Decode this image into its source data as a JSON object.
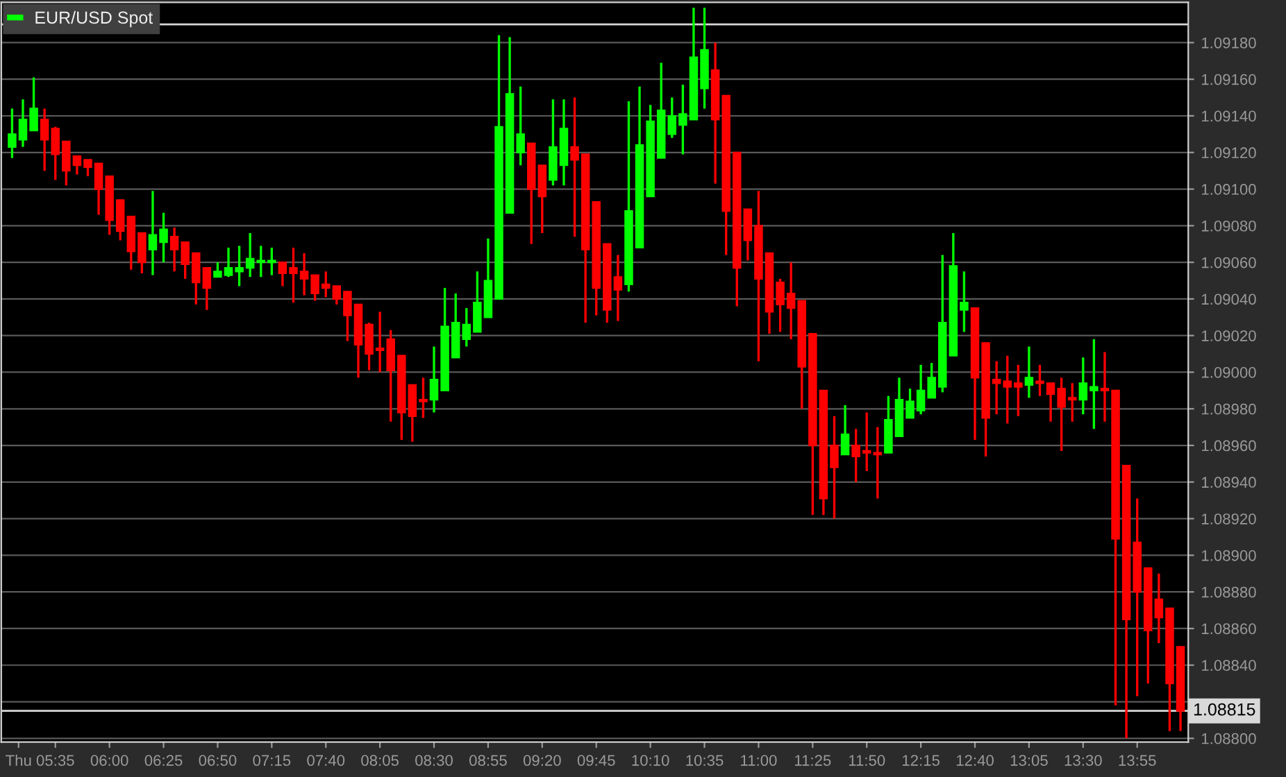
{
  "chart_data": {
    "type": "candlestick",
    "series": [
      {
        "name": "EUR/USD Spot",
        "colors": [
          "#00ff00",
          "#00ff00",
          "#00ff00",
          "#ff0000",
          "#ff0000",
          "#ff0000",
          "#ff0000",
          "#ff0000",
          "#ff0000",
          "#ff0000",
          "#ff0000",
          "#ff0000",
          "#ff0000",
          "#00ff00",
          "#00ff00",
          "#ff0000",
          "#ff0000",
          "#ff0000",
          "#ff0000",
          "#00ff00",
          "#00ff00",
          "#00ff00",
          "#00ff00",
          "#00ff00",
          "#00ff00",
          "#ff0000",
          "#ff0000",
          "#ff0000",
          "#ff0000",
          "#ff0000",
          "#ff0000",
          "#ff0000",
          "#ff0000",
          "#ff0000",
          "#ff0000",
          "#ff0000",
          "#ff0000",
          "#ff0000",
          "#ff0000",
          "#00ff00",
          "#00ff00",
          "#00ff00",
          "#00ff00",
          "#00ff00",
          "#00ff00",
          "#00ff00",
          "#00ff00",
          "#00ff00",
          "#ff0000",
          "#ff0000",
          "#00ff00",
          "#00ff00",
          "#ff0000",
          "#ff0000",
          "#ff0000",
          "#ff0000",
          "#ff0000",
          "#00ff00",
          "#00ff00",
          "#00ff00",
          "#00ff00",
          "#00ff00",
          "#00ff00",
          "#00ff00",
          "#00ff00",
          "#ff0000",
          "#ff0000",
          "#ff0000",
          "#ff0000",
          "#ff0000",
          "#ff0000",
          "#ff0000",
          "#ff0000",
          "#ff0000",
          "#ff0000",
          "#ff0000",
          "#ff0000",
          "#00ff00",
          "#ff0000",
          "#ff0000",
          "#ff0000",
          "#00ff00",
          "#00ff00",
          "#00ff00",
          "#00ff00",
          "#00ff00",
          "#00ff00",
          "#00ff00",
          "#00ff00",
          "#ff0000",
          "#ff0000",
          "#ff0000",
          "#ff0000",
          "#ff0000",
          "#00ff00",
          "#ff0000",
          "#ff0000",
          "#ff0000",
          "#ff0000",
          "#00ff00",
          "#00ff00",
          "#ff0000",
          "#ff0000",
          "#ff0000",
          "#ff0000",
          "#ff0000",
          "#ff0000",
          "#ff0000",
          "#ff0000"
        ],
        "x": [
          5.25,
          5.3333,
          5.4167,
          5.5,
          5.5833,
          5.6667,
          5.75,
          5.8333,
          5.9167,
          6,
          6.0833,
          6.1667,
          6.25,
          6.3333,
          6.4167,
          6.5,
          6.5833,
          6.6667,
          6.75,
          6.8333,
          6.9167,
          7,
          7.0833,
          7.1667,
          7.25,
          7.3333,
          7.4167,
          7.5,
          7.5833,
          7.6667,
          7.75,
          7.8333,
          7.9167,
          8,
          8.0833,
          8.1667,
          8.25,
          8.3333,
          8.4167,
          8.5,
          8.5833,
          8.6667,
          8.75,
          8.8333,
          8.9167,
          9,
          9.0833,
          9.1667,
          9.25,
          9.3333,
          9.4167,
          9.5,
          9.5833,
          9.6667,
          9.75,
          9.8333,
          9.9167,
          10,
          10.0833,
          10.1667,
          10.25,
          10.3333,
          10.4167,
          10.5,
          10.5833,
          10.6667,
          10.75,
          10.8333,
          10.9167,
          11,
          11.0833,
          11.1667,
          11.25,
          11.3333,
          11.4167,
          11.5,
          11.5833,
          11.6667,
          11.75,
          11.8333,
          11.9167,
          12,
          12.0833,
          12.1667,
          12.25,
          12.3333,
          12.4167,
          12.5,
          12.5833,
          12.6667,
          12.75,
          12.8333,
          12.9167,
          13,
          13.0833,
          13.1667,
          13.25,
          13.3333,
          13.4167,
          13.5,
          13.5833,
          13.6667,
          13.75,
          13.8333,
          13.9167,
          14,
          14.0833,
          14.1667,
          14.25
        ],
        "ohlc": [
          [
            1.09123,
            1.09144,
            1.09117,
            1.0913
          ],
          [
            1.09127,
            1.09149,
            1.09123,
            1.09138
          ],
          [
            1.09132,
            1.09161,
            1.09132,
            1.09144
          ],
          [
            1.09138,
            1.09144,
            1.0911,
            1.09127
          ],
          [
            1.09133,
            1.09134,
            1.09105,
            1.09119
          ],
          [
            1.09126,
            1.09126,
            1.09102,
            1.0911
          ],
          [
            1.09118,
            1.09118,
            1.09108,
            1.09113
          ],
          [
            1.09116,
            1.09116,
            1.09107,
            1.09112
          ],
          [
            1.09114,
            1.09114,
            1.09086,
            1.091
          ],
          [
            1.09107,
            1.09107,
            1.09075,
            1.09083
          ],
          [
            1.09094,
            1.09094,
            1.09072,
            1.09077
          ],
          [
            1.09085,
            1.09085,
            1.09056,
            1.09066
          ],
          [
            1.09076,
            1.09076,
            1.09054,
            1.0906
          ],
          [
            1.09067,
            1.09099,
            1.09053,
            1.09075
          ],
          [
            1.09071,
            1.09087,
            1.0906,
            1.09078
          ],
          [
            1.09074,
            1.09079,
            1.09055,
            1.09067
          ],
          [
            1.09071,
            1.09071,
            1.09051,
            1.09059
          ],
          [
            1.09065,
            1.09065,
            1.09037,
            1.09049
          ],
          [
            1.09057,
            1.09057,
            1.09034,
            1.09046
          ],
          [
            1.09052,
            1.0906,
            1.09052,
            1.09055
          ],
          [
            1.09053,
            1.09068,
            1.09052,
            1.09057
          ],
          [
            1.09055,
            1.09069,
            1.09047,
            1.09057
          ],
          [
            1.09057,
            1.09076,
            1.09052,
            1.09062
          ],
          [
            1.0906,
            1.09069,
            1.09052,
            1.09061
          ],
          [
            1.0906,
            1.09068,
            1.09053,
            1.09061
          ],
          [
            1.0906,
            1.0906,
            1.09047,
            1.09054
          ],
          [
            1.09057,
            1.09068,
            1.09038,
            1.09054
          ],
          [
            1.09055,
            1.09065,
            1.09042,
            1.09051
          ],
          [
            1.09053,
            1.09053,
            1.09039,
            1.09043
          ],
          [
            1.09048,
            1.09055,
            1.09041,
            1.09046
          ],
          [
            1.09047,
            1.09047,
            1.09037,
            1.0904
          ],
          [
            1.09044,
            1.09044,
            1.09017,
            1.09031
          ],
          [
            1.09037,
            1.09037,
            1.08997,
            1.09015
          ],
          [
            1.09026,
            1.09027,
            1.09001,
            1.0901
          ],
          [
            1.09013,
            1.09033,
            1.09,
            1.09012
          ],
          [
            1.09018,
            1.09023,
            1.08973,
            1.09001
          ],
          [
            1.09009,
            1.09009,
            1.08963,
            1.08978
          ],
          [
            1.08993,
            1.08993,
            1.08962,
            1.08976
          ],
          [
            1.08985,
            1.08997,
            1.08975,
            1.08984
          ],
          [
            1.08985,
            1.09014,
            1.08978,
            1.08996
          ],
          [
            1.0899,
            1.09046,
            1.0899,
            1.09025
          ],
          [
            1.09008,
            1.09043,
            1.09008,
            1.09027
          ],
          [
            1.09018,
            1.09035,
            1.09014,
            1.09026
          ],
          [
            1.09022,
            1.09055,
            1.09022,
            1.09038
          ],
          [
            1.0903,
            1.09073,
            1.0903,
            1.0905
          ],
          [
            1.0904,
            1.09184,
            1.0904,
            1.09134
          ],
          [
            1.09087,
            1.09183,
            1.09087,
            1.09152
          ],
          [
            1.0912,
            1.09156,
            1.09113,
            1.0913
          ],
          [
            1.09125,
            1.09125,
            1.0907,
            1.091
          ],
          [
            1.09113,
            1.09113,
            1.09076,
            1.09096
          ],
          [
            1.09105,
            1.09149,
            1.09102,
            1.09123
          ],
          [
            1.09113,
            1.09149,
            1.09102,
            1.09133
          ],
          [
            1.09123,
            1.0915,
            1.09074,
            1.09116
          ],
          [
            1.09119,
            1.09119,
            1.09027,
            1.09067
          ],
          [
            1.09093,
            1.09093,
            1.09031,
            1.09046
          ],
          [
            1.0907,
            1.0907,
            1.09027,
            1.09034
          ],
          [
            1.09052,
            1.09064,
            1.09028,
            1.09045
          ],
          [
            1.09048,
            1.09148,
            1.09044,
            1.09088
          ],
          [
            1.09068,
            1.09156,
            1.09068,
            1.09124
          ],
          [
            1.09096,
            1.09146,
            1.09096,
            1.09137
          ],
          [
            1.09117,
            1.09169,
            1.09117,
            1.09143
          ],
          [
            1.0913,
            1.0915,
            1.09128,
            1.0914
          ],
          [
            1.09135,
            1.09157,
            1.09119,
            1.09141
          ],
          [
            1.09138,
            1.09199,
            1.09138,
            1.09172
          ],
          [
            1.09155,
            1.09199,
            1.09144,
            1.09176
          ],
          [
            1.09165,
            1.0918,
            1.09103,
            1.09138
          ],
          [
            1.09151,
            1.09151,
            1.09064,
            1.09088
          ],
          [
            1.0912,
            1.0912,
            1.09036,
            1.09057
          ],
          [
            1.09089,
            1.09089,
            1.09061,
            1.09072
          ],
          [
            1.0908,
            1.09099,
            1.09006,
            1.09051
          ],
          [
            1.09065,
            1.09065,
            1.09021,
            1.09033
          ],
          [
            1.09049,
            1.09051,
            1.09022,
            1.09037
          ],
          [
            1.09043,
            1.0906,
            1.09018,
            1.09035
          ],
          [
            1.09039,
            1.09039,
            1.0898,
            1.09003
          ],
          [
            1.09021,
            1.09021,
            1.08922,
            1.0896
          ],
          [
            1.0899,
            1.0899,
            1.08922,
            1.08931
          ],
          [
            1.0896,
            1.08976,
            1.0892,
            1.08948
          ],
          [
            1.08955,
            1.08982,
            1.08955,
            1.08966
          ],
          [
            1.0896,
            1.08969,
            1.0894,
            1.08954
          ],
          [
            1.08957,
            1.08978,
            1.08946,
            1.08956
          ],
          [
            1.08956,
            1.0897,
            1.08931,
            1.08955
          ],
          [
            1.08956,
            1.08987,
            1.08956,
            1.08974
          ],
          [
            1.08965,
            1.08997,
            1.08965,
            1.08985
          ],
          [
            1.08975,
            1.08991,
            1.08975,
            1.08984
          ],
          [
            1.08979,
            1.09004,
            1.08977,
            1.0899
          ],
          [
            1.08986,
            1.09005,
            1.08986,
            1.08997
          ],
          [
            1.08992,
            1.09064,
            1.08989,
            1.09027
          ],
          [
            1.09009,
            1.09076,
            1.09009,
            1.09058
          ],
          [
            1.09034,
            1.09055,
            1.09022,
            1.09038
          ],
          [
            1.09035,
            1.09035,
            1.08963,
            1.08997
          ],
          [
            1.09016,
            1.09016,
            1.08954,
            1.08975
          ],
          [
            1.08996,
            1.09006,
            1.08977,
            1.08994
          ],
          [
            1.08995,
            1.09009,
            1.08972,
            1.08992
          ],
          [
            1.08994,
            1.09004,
            1.08976,
            1.08992
          ],
          [
            1.08993,
            1.09014,
            1.08986,
            1.08997
          ],
          [
            1.08995,
            1.09004,
            1.08987,
            1.08994
          ],
          [
            1.08994,
            1.08994,
            1.08973,
            1.08988
          ],
          [
            1.08991,
            1.08997,
            1.08957,
            1.08981
          ],
          [
            1.08986,
            1.08994,
            1.08973,
            1.08985
          ],
          [
            1.08985,
            1.09008,
            1.08977,
            1.08994
          ],
          [
            1.0899,
            1.09018,
            1.08969,
            1.08992
          ],
          [
            1.08991,
            1.09011,
            1.08973,
            1.0899
          ],
          [
            1.0899,
            1.0899,
            1.08818,
            1.08909
          ],
          [
            1.08949,
            1.08949,
            1.088,
            1.08865
          ],
          [
            1.08907,
            1.08931,
            1.08823,
            1.0888
          ],
          [
            1.08893,
            1.08893,
            1.0883,
            1.08859
          ],
          [
            1.08876,
            1.0889,
            1.08852,
            1.08866
          ],
          [
            1.08871,
            1.08871,
            1.08804,
            1.0883
          ],
          [
            1.0885,
            1.0885,
            1.08804,
            1.08815
          ]
        ]
      }
    ],
    "xlim": [
      5.1667,
      14.31
    ],
    "xticks": [
      {
        "value": 5.3,
        "label": "Thu"
      },
      {
        "value": 5.5833,
        "label": "05:35"
      },
      {
        "value": 6,
        "label": "06:00"
      },
      {
        "value": 6.4167,
        "label": "06:25"
      },
      {
        "value": 6.8333,
        "label": "06:50"
      },
      {
        "value": 7.25,
        "label": "07:15"
      },
      {
        "value": 7.6667,
        "label": "07:40"
      },
      {
        "value": 8.0833,
        "label": "08:05"
      },
      {
        "value": 8.5,
        "label": "08:30"
      },
      {
        "value": 8.9167,
        "label": "08:55"
      },
      {
        "value": 9.3333,
        "label": "09:20"
      },
      {
        "value": 9.75,
        "label": "09:45"
      },
      {
        "value": 10.1667,
        "label": "10:10"
      },
      {
        "value": 10.5833,
        "label": "10:35"
      },
      {
        "value": 11,
        "label": "11:00"
      },
      {
        "value": 11.4167,
        "label": "11:25"
      },
      {
        "value": 11.8333,
        "label": "11:50"
      },
      {
        "value": 12.25,
        "label": "12:15"
      },
      {
        "value": 12.6667,
        "label": "12:40"
      },
      {
        "value": 13.0833,
        "label": "13:05"
      },
      {
        "value": 13.5,
        "label": "13:30"
      },
      {
        "value": 13.9167,
        "label": "13:55"
      }
    ],
    "ylim": [
      1.08798,
      1.09202
    ],
    "yticks": [
      {
        "value": 1.088,
        "label": "1.08800"
      },
      {
        "value": 1.0882,
        "label": null
      },
      {
        "value": 1.0884,
        "label": "1.08840"
      },
      {
        "value": 1.0886,
        "label": "1.08860"
      },
      {
        "value": 1.0888,
        "label": "1.08880"
      },
      {
        "value": 1.089,
        "label": "1.08900"
      },
      {
        "value": 1.0892,
        "label": "1.08920"
      },
      {
        "value": 1.0894,
        "label": "1.08940"
      },
      {
        "value": 1.0896,
        "label": "1.08960"
      },
      {
        "value": 1.0898,
        "label": "1.08980"
      },
      {
        "value": 1.09,
        "label": "1.09000"
      },
      {
        "value": 1.0902,
        "label": "1.09020"
      },
      {
        "value": 1.0904,
        "label": "1.09040"
      },
      {
        "value": 1.0906,
        "label": "1.09060"
      },
      {
        "value": 1.0908,
        "label": "1.09080"
      },
      {
        "value": 1.091,
        "label": "1.09100"
      },
      {
        "value": 1.0912,
        "label": "1.09120"
      },
      {
        "value": 1.0914,
        "label": "1.09140"
      },
      {
        "value": 1.0916,
        "label": "1.09160"
      },
      {
        "value": 1.0918,
        "label": "1.09180"
      }
    ],
    "ref_lines": [
      {
        "axis": "y",
        "value": 1.08815,
        "label": "1.08815",
        "color": "#d8d8d8"
      },
      {
        "axis": "y",
        "value": 1.0919,
        "color": "#d8d8d8"
      }
    ],
    "grid": "y",
    "legend": "top left"
  }
}
